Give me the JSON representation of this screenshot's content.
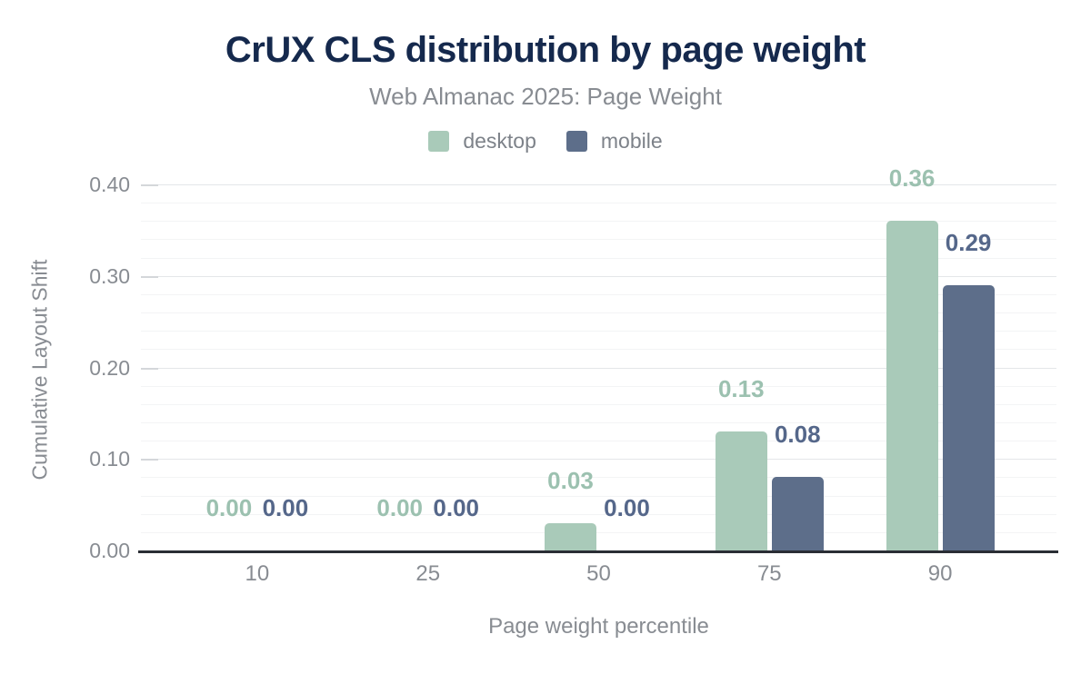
{
  "header": {
    "title": "CrUX CLS distribution by page weight",
    "subtitle": "Web Almanac 2025: Page Weight"
  },
  "legend": [
    {
      "label": "desktop",
      "color": "#a9cab9"
    },
    {
      "label": "mobile",
      "color": "#5d6e8a"
    }
  ],
  "colors": {
    "title": "#15294d",
    "axis_text": "#888c92",
    "axis_line": "#2a2e35",
    "desktop_bar": "#a9cab9",
    "desktop_label": "#9cc1b0",
    "mobile_bar": "#5d6e8a",
    "mobile_label": "#55678a"
  },
  "chart_data": {
    "type": "bar",
    "title": "CrUX CLS distribution by page weight",
    "subtitle": "Web Almanac 2025: Page Weight",
    "xlabel": "Page weight percentile",
    "ylabel": "Cumulative Layout Shift",
    "categories": [
      "10",
      "25",
      "50",
      "75",
      "90"
    ],
    "series": [
      {
        "name": "desktop",
        "color": "#a9cab9",
        "label_color": "#9cc1b0",
        "values": [
          0.0,
          0.0,
          0.03,
          0.13,
          0.36
        ],
        "labels": [
          "0.00",
          "0.00",
          "0.03",
          "0.13",
          "0.36"
        ]
      },
      {
        "name": "mobile",
        "color": "#5d6e8a",
        "label_color": "#55678a",
        "values": [
          0.0,
          0.0,
          0.0,
          0.08,
          0.29
        ],
        "labels": [
          "0.00",
          "0.00",
          "0.00",
          "0.08",
          "0.29"
        ]
      }
    ],
    "ylim": [
      0,
      0.4
    ],
    "yticks": [
      0.0,
      0.1,
      0.2,
      0.3,
      0.4
    ],
    "ytick_labels": [
      "0.00",
      "0.10",
      "0.20",
      "0.30",
      "0.40"
    ],
    "minor_step": 0.02,
    "grid": "horizontal-minor-and-major",
    "legend_position": "top-center"
  }
}
